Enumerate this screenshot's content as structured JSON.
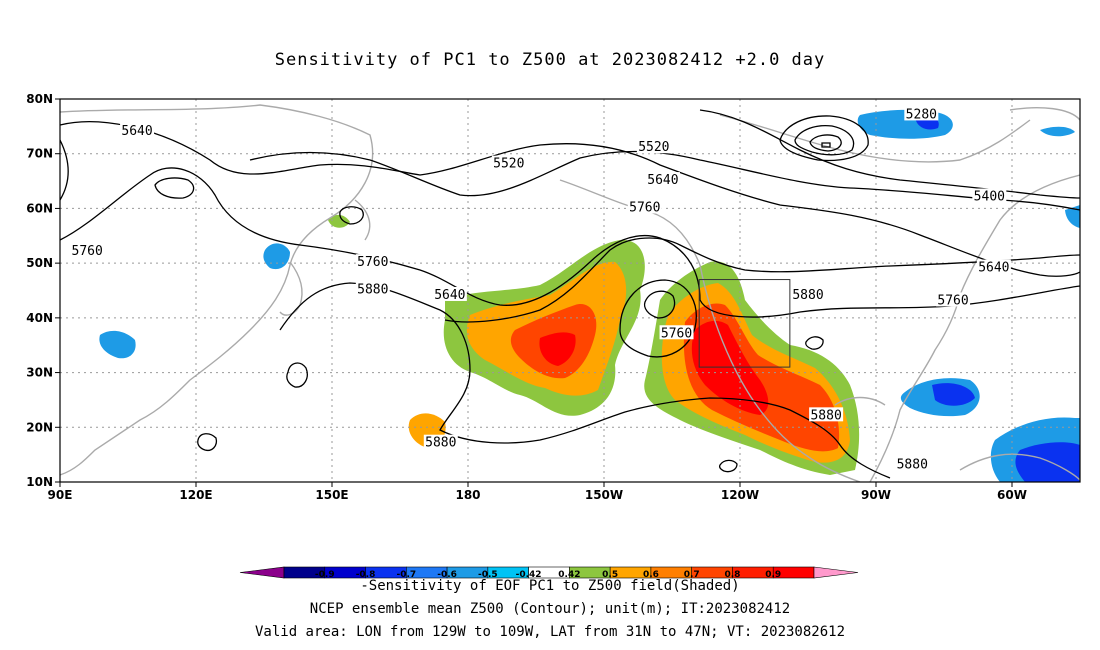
{
  "title": "Sensitivity of PC1 to Z500 at 2023082412 +2.0 day",
  "map": {
    "lat_labels": [
      "80N",
      "70N",
      "60N",
      "50N",
      "40N",
      "30N",
      "20N",
      "10N"
    ],
    "lon_labels": [
      "90E",
      "120E",
      "150E",
      "180",
      "150W",
      "120W",
      "90W",
      "60W"
    ],
    "contour_labels": [
      {
        "text": "5280",
        "lon": -80,
        "lat": 77
      },
      {
        "text": "5400",
        "lon": -65,
        "lat": 62
      },
      {
        "text": "5520",
        "lon": -171,
        "lat": 68
      },
      {
        "text": "5520",
        "lon": -139,
        "lat": 71
      },
      {
        "text": "5640",
        "lon": 107,
        "lat": 74
      },
      {
        "text": "5640",
        "lon": -137,
        "lat": 65
      },
      {
        "text": "5640",
        "lon": -64,
        "lat": 49
      },
      {
        "text": "5640",
        "lon": 176,
        "lat": 44
      },
      {
        "text": "5760",
        "lon": 96,
        "lat": 52
      },
      {
        "text": "5760",
        "lon": 159,
        "lat": 50
      },
      {
        "text": "5760",
        "lon": -141,
        "lat": 60
      },
      {
        "text": "5760",
        "lon": -73,
        "lat": 43
      },
      {
        "text": "5760",
        "lon": -134,
        "lat": 37
      },
      {
        "text": "5880",
        "lon": 159,
        "lat": 45
      },
      {
        "text": "5880",
        "lon": -105,
        "lat": 44
      },
      {
        "text": "5880",
        "lon": -101,
        "lat": 22
      },
      {
        "text": "5880",
        "lon": 174,
        "lat": 17
      },
      {
        "text": "5880",
        "lon": -82,
        "lat": 13
      }
    ],
    "valid_area": {
      "lon_min": -129,
      "lon_max": -109,
      "lat_min": 31,
      "lat_max": 47
    }
  },
  "colorbar": {
    "labels": [
      "-0.9",
      "-0.8",
      "-0.7",
      "-0.6",
      "-0.5",
      "-0.42",
      "0.42",
      "0.5",
      "0.6",
      "0.7",
      "0.8",
      "0.9"
    ],
    "colors": [
      "#8b008b",
      "#00008b",
      "#0000cd",
      "#0a32f0",
      "#1e78f5",
      "#1e9be6",
      "#00c3f5",
      "#ffffff",
      "#8dc63f",
      "#ffa500",
      "#ff7f00",
      "#ff4500",
      "#ff1e00",
      "#ff0000",
      "#ff99cc"
    ]
  },
  "footer": {
    "line1": "-Sensitivity of EOF PC1 to Z500 field(Shaded)",
    "line2": "NCEP ensemble mean Z500 (Contour); unit(m); IT:2023082412",
    "line3": "Valid area: LON from 129W to 109W, LAT from 31N to 47N; VT: 2023082612"
  }
}
